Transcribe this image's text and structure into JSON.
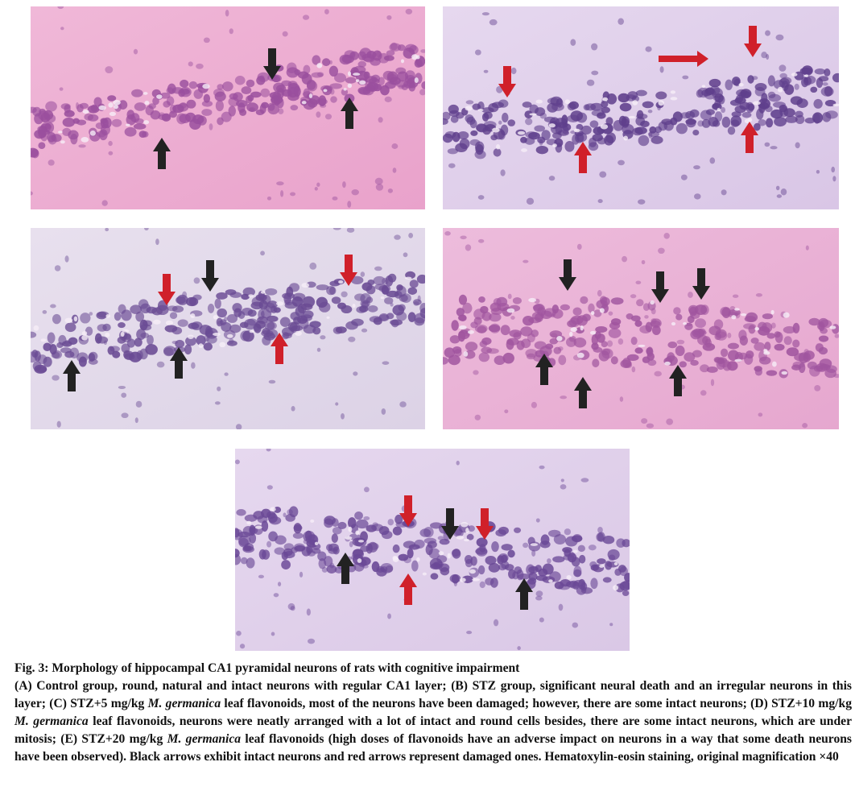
{
  "figure": {
    "caption": {
      "title": "Fig. 3: Morphology of hippocampal CA1 pyramidal neurons of rats with cognitive impairment",
      "runs": [
        {
          "text": "(A) Control group, round, natural and intact neurons with regular CA1 layer; (B) STZ group, significant neural death and an irregular neurons in this layer; (C) STZ+5 mg/kg ",
          "italic": false
        },
        {
          "text": "M. germanica",
          "italic": true
        },
        {
          "text": " leaf flavonoids, most of the neurons have been damaged; however, there are some intact neurons; (D) STZ+10 mg/kg ",
          "italic": false
        },
        {
          "text": "M. germanica",
          "italic": true
        },
        {
          "text": " leaf flavonoids, neurons were neatly arranged with a lot of intact and round cells besides, there are some intact neurons, which are under mitosis; (E) STZ+20 mg/kg ",
          "italic": false
        },
        {
          "text": "M. germanica",
          "italic": true
        },
        {
          "text": " leaf flavonoids (high doses of flavonoids have an adverse impact on neurons in a way that some death neurons have been observed). Black arrows exhibit intact neurons and red arrows represent damaged ones. Hematoxylin-eosin staining, original magnification ×40",
          "italic": false
        }
      ]
    }
  }
}
